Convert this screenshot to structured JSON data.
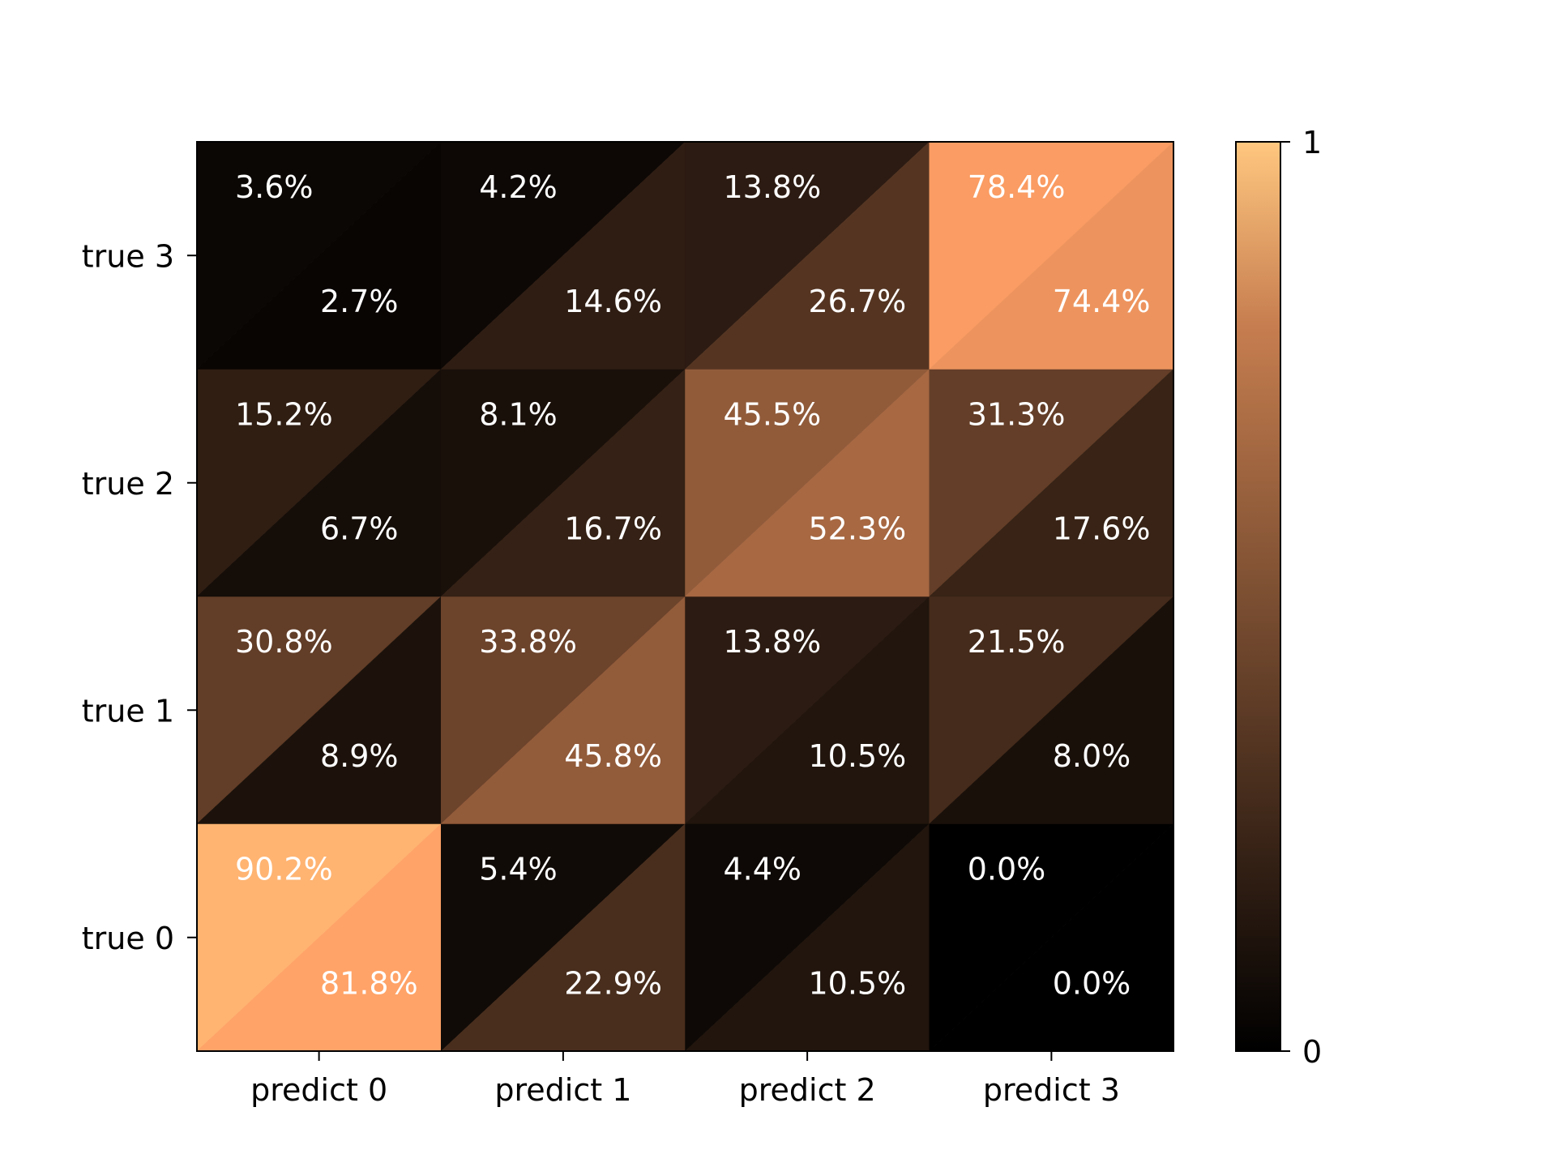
{
  "chart_data": {
    "type": "heatmap",
    "subtype": "split-triangle confusion matrix",
    "title": "",
    "xlabel": "",
    "ylabel": "",
    "x_categories": [
      "predict 0",
      "predict 1",
      "predict 2",
      "predict 3"
    ],
    "y_categories": [
      "true 0",
      "true 1",
      "true 2",
      "true 3"
    ],
    "series": [
      {
        "name": "upper-left triangle",
        "values": [
          [
            0.902,
            0.054,
            0.044,
            0.0
          ],
          [
            0.308,
            0.338,
            0.138,
            0.215
          ],
          [
            0.152,
            0.081,
            0.455,
            0.313
          ],
          [
            0.036,
            0.042,
            0.138,
            0.784
          ]
        ],
        "labels": [
          [
            "90.2%",
            "5.4%",
            "4.4%",
            "0.0%"
          ],
          [
            "30.8%",
            "33.8%",
            "13.8%",
            "21.5%"
          ],
          [
            "15.2%",
            "8.1%",
            "45.5%",
            "31.3%"
          ],
          [
            "3.6%",
            "4.2%",
            "13.8%",
            "78.4%"
          ]
        ]
      },
      {
        "name": "lower-right triangle",
        "values": [
          [
            0.818,
            0.229,
            0.105,
            0.0
          ],
          [
            0.089,
            0.458,
            0.105,
            0.08
          ],
          [
            0.067,
            0.167,
            0.523,
            0.176
          ],
          [
            0.027,
            0.146,
            0.267,
            0.744
          ]
        ],
        "labels": [
          [
            "81.8%",
            "22.9%",
            "10.5%",
            "0.0%"
          ],
          [
            "8.9%",
            "45.8%",
            "10.5%",
            "8.0%"
          ],
          [
            "6.7%",
            "16.7%",
            "52.3%",
            "17.6%"
          ],
          [
            "2.7%",
            "14.6%",
            "26.7%",
            "74.4%"
          ]
        ]
      }
    ],
    "colorbar": {
      "colormap": "copper",
      "range": [
        0,
        1
      ],
      "ticks": [
        0,
        1
      ],
      "tick_labels": [
        "0",
        "1"
      ]
    },
    "grid": false,
    "legend": "colorbar right"
  }
}
